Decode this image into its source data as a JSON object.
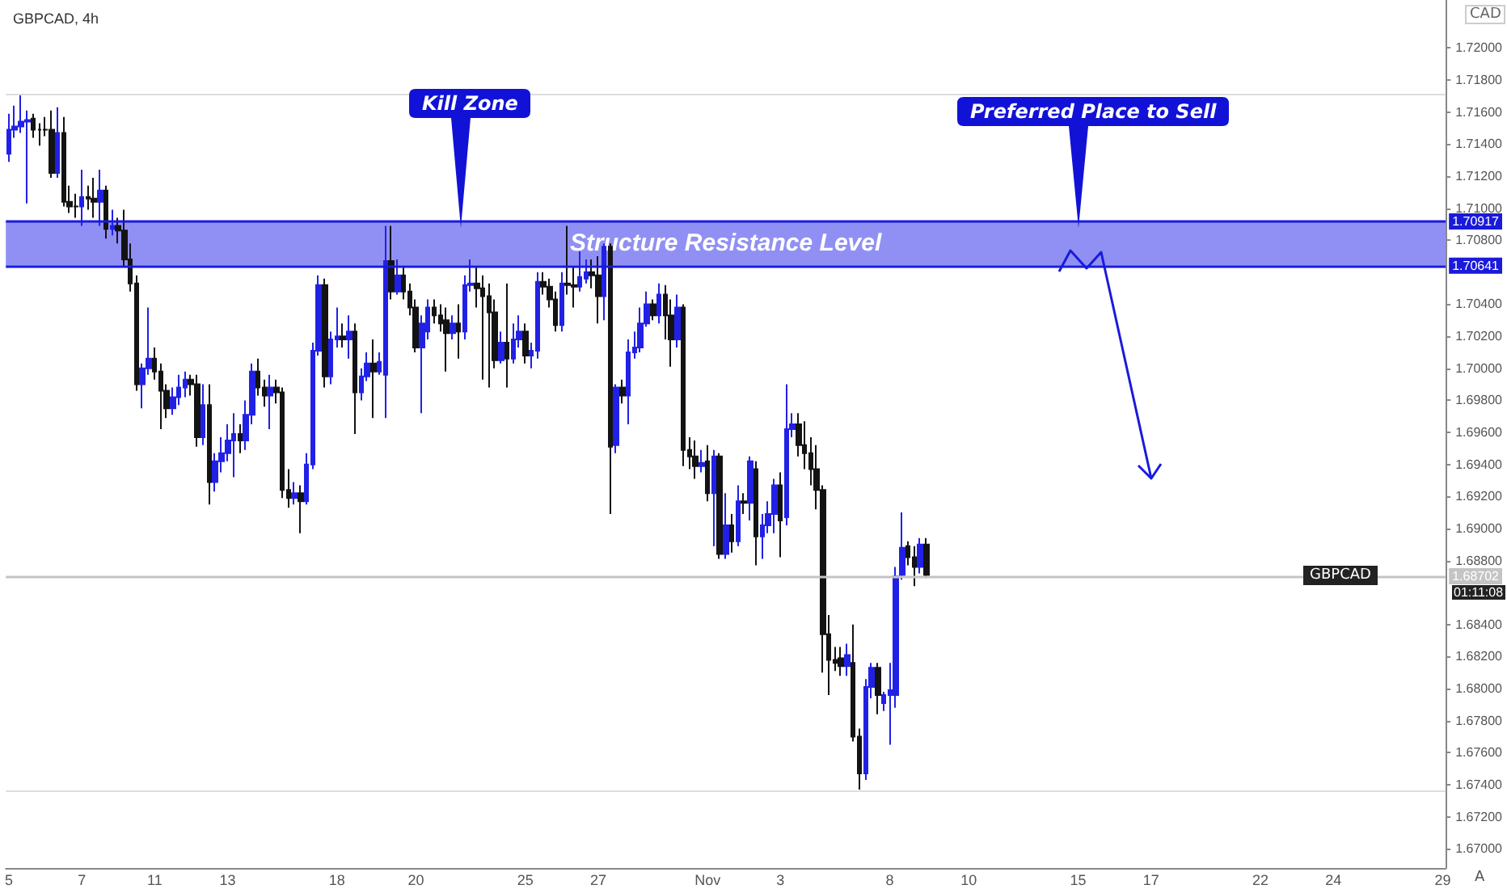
{
  "chart_data": {
    "type": "candlestick",
    "title": "GBPCAD, 4h",
    "categories": [
      "5",
      null,
      null,
      null,
      null,
      null,
      null,
      null,
      null,
      null,
      null,
      null,
      "7",
      null,
      null,
      null,
      null,
      null,
      null,
      null,
      null,
      null,
      null,
      null,
      "11",
      null,
      null,
      null,
      null,
      null,
      null,
      null,
      null,
      null,
      null,
      null,
      "13",
      null,
      null,
      null,
      null,
      null,
      null,
      null,
      null,
      null,
      null,
      null,
      null,
      null,
      null,
      null,
      null,
      null,
      "18",
      null,
      null,
      null,
      null,
      null,
      null,
      null,
      null,
      null,
      null,
      null,
      null,
      "20",
      null,
      null,
      null,
      null,
      null,
      null,
      null,
      null,
      null,
      null,
      null,
      null,
      null,
      null,
      null,
      null,
      null,
      "25",
      null,
      null,
      null,
      null,
      null,
      null,
      null,
      null,
      null,
      null,
      null,
      "27",
      null,
      null,
      null,
      null,
      null,
      null,
      null,
      null,
      null,
      null,
      null,
      null,
      null,
      null,
      null,
      null,
      null,
      "Nov",
      null,
      null,
      null,
      null,
      null,
      null,
      null,
      null,
      null,
      null,
      null,
      "3",
      null,
      null,
      null,
      null,
      null,
      null,
      null,
      null,
      null,
      null,
      null,
      null,
      null,
      null,
      null,
      null,
      null,
      "8",
      null,
      null,
      null,
      null,
      null,
      null,
      null,
      null,
      null,
      null,
      null,
      null,
      "10",
      null,
      null,
      null,
      null,
      null,
      null,
      null,
      null,
      null,
      null,
      null,
      null,
      null,
      null,
      null,
      null,
      null,
      "15",
      null,
      null,
      null,
      null,
      null,
      null,
      null,
      null,
      null,
      null,
      null,
      "17",
      null,
      null,
      null,
      null,
      null,
      null,
      null,
      null,
      null,
      null,
      null,
      null,
      null,
      null,
      null,
      null,
      null,
      "22",
      null,
      null,
      null,
      null,
      null,
      null,
      null,
      null,
      null,
      null,
      null,
      "24",
      null,
      null,
      null,
      null,
      null,
      null,
      null,
      null,
      null,
      null,
      null,
      null,
      null,
      null,
      null,
      null,
      null,
      "29"
    ],
    "ohlc": [
      [
        1.7134,
        1.7159,
        1.7129,
        1.7149
      ],
      [
        1.7149,
        1.7164,
        1.7144,
        1.7151
      ],
      [
        1.7151,
        1.7171,
        1.7147,
        1.7154
      ],
      [
        1.7154,
        1.7161,
        1.7103,
        1.7155
      ],
      [
        1.7156,
        1.7159,
        1.7144,
        1.7149
      ],
      [
        1.7149,
        1.7153,
        1.7139,
        1.7149
      ],
      [
        1.7149,
        1.7157,
        1.7145,
        1.7149
      ],
      [
        1.7149,
        1.7161,
        1.7119,
        1.7122
      ],
      [
        1.7122,
        1.7163,
        1.7119,
        1.7147
      ],
      [
        1.7147,
        1.7157,
        1.7101,
        1.7104
      ],
      [
        1.7104,
        1.7114,
        1.7097,
        1.7101
      ],
      [
        1.7101,
        1.7109,
        1.7094,
        1.7101
      ],
      [
        1.7101,
        1.7124,
        1.7089,
        1.7107
      ],
      [
        1.7107,
        1.7114,
        1.7099,
        1.7106
      ],
      [
        1.7106,
        1.7119,
        1.7094,
        1.7104
      ],
      [
        1.7104,
        1.7124,
        1.7089,
        1.7111
      ],
      [
        1.7111,
        1.7114,
        1.7081,
        1.7087
      ],
      [
        1.7087,
        1.7099,
        1.7083,
        1.7089
      ],
      [
        1.7089,
        1.7094,
        1.7078,
        1.7086
      ],
      [
        1.7086,
        1.7099,
        1.7063,
        1.7068
      ],
      [
        1.7068,
        1.7078,
        1.7048,
        1.7053
      ],
      [
        1.7053,
        1.7058,
        1.6986,
        1.699
      ],
      [
        1.699,
        1.7003,
        1.6975,
        1.7
      ],
      [
        1.7,
        1.7038,
        1.6996,
        1.7006
      ],
      [
        1.7006,
        1.7013,
        1.6993,
        1.6998
      ],
      [
        1.6998,
        1.7003,
        1.6962,
        1.6986
      ],
      [
        1.6986,
        1.699,
        1.6969,
        1.6975
      ],
      [
        1.6975,
        1.6988,
        1.6971,
        1.6982
      ],
      [
        1.6982,
        1.6996,
        1.6977,
        1.6988
      ],
      [
        1.6988,
        1.6998,
        1.6982,
        1.6993
      ],
      [
        1.6993,
        1.6996,
        1.6983,
        1.699
      ],
      [
        1.699,
        1.6996,
        1.6951,
        1.6957
      ],
      [
        1.6957,
        1.699,
        1.6952,
        1.6977
      ],
      [
        1.6977,
        1.699,
        1.6915,
        1.6929
      ],
      [
        1.6929,
        1.6947,
        1.6923,
        1.6942
      ],
      [
        1.6942,
        1.6957,
        1.6935,
        1.6947
      ],
      [
        1.6947,
        1.6965,
        1.6942,
        1.6955
      ],
      [
        1.6955,
        1.6972,
        1.6932,
        1.6959
      ],
      [
        1.6959,
        1.6965,
        1.6947,
        1.6955
      ],
      [
        1.6955,
        1.698,
        1.6949,
        1.6971
      ],
      [
        1.6971,
        1.7003,
        1.6965,
        1.6998
      ],
      [
        1.6998,
        1.7006,
        1.6983,
        1.6988
      ],
      [
        1.6988,
        1.6993,
        1.6976,
        1.6983
      ],
      [
        1.6983,
        1.6996,
        1.6962,
        1.6988
      ],
      [
        1.6988,
        1.6993,
        1.6978,
        1.6985
      ],
      [
        1.6985,
        1.6988,
        1.6919,
        1.6924
      ],
      [
        1.6924,
        1.6937,
        1.6913,
        1.6919
      ],
      [
        1.6919,
        1.6929,
        1.6915,
        1.6922
      ],
      [
        1.6922,
        1.6927,
        1.6897,
        1.6917
      ],
      [
        1.6917,
        1.6947,
        1.6915,
        1.694
      ],
      [
        1.694,
        1.7016,
        1.6937,
        1.7011
      ],
      [
        1.7011,
        1.7058,
        1.7008,
        1.7052
      ],
      [
        1.7052,
        1.7056,
        1.6988,
        1.6995
      ],
      [
        1.6995,
        1.7023,
        1.699,
        1.7018
      ],
      [
        1.7018,
        1.7038,
        1.7013,
        1.702
      ],
      [
        1.702,
        1.7028,
        1.7013,
        1.7018
      ],
      [
        1.7018,
        1.7033,
        1.7006,
        1.7023
      ],
      [
        1.7023,
        1.7028,
        1.6959,
        1.6985
      ],
      [
        1.6985,
        1.7,
        1.698,
        1.6995
      ],
      [
        1.6995,
        1.701,
        1.6992,
        1.7003
      ],
      [
        1.7003,
        1.7018,
        1.6969,
        1.6998
      ],
      [
        1.6998,
        1.701,
        1.6996,
        1.7004
      ],
      [
        1.6996,
        1.7089,
        1.6969,
        1.7067
      ],
      [
        1.7067,
        1.7089,
        1.7043,
        1.7048
      ],
      [
        1.7048,
        1.7068,
        1.7046,
        1.7058
      ],
      [
        1.7058,
        1.7063,
        1.7043,
        1.7048
      ],
      [
        1.7048,
        1.7053,
        1.7033,
        1.7038
      ],
      [
        1.7038,
        1.7043,
        1.701,
        1.7013
      ],
      [
        1.7013,
        1.7033,
        1.6972,
        1.7028
      ],
      [
        1.7023,
        1.7043,
        1.7018,
        1.7038
      ],
      [
        1.7038,
        1.7043,
        1.7028,
        1.7033
      ],
      [
        1.7033,
        1.704,
        1.7023,
        1.7028
      ],
      [
        1.703,
        1.7038,
        1.6998,
        1.7022
      ],
      [
        1.7022,
        1.7033,
        1.7018,
        1.7028
      ],
      [
        1.7028,
        1.704,
        1.7006,
        1.7023
      ],
      [
        1.7023,
        1.7058,
        1.7018,
        1.7052
      ],
      [
        1.7052,
        1.7068,
        1.7048,
        1.7053
      ],
      [
        1.7053,
        1.7063,
        1.7038,
        1.705
      ],
      [
        1.705,
        1.7058,
        1.6993,
        1.7045
      ],
      [
        1.7045,
        1.7053,
        1.6988,
        1.7035
      ],
      [
        1.7035,
        1.7043,
        1.7,
        1.7005
      ],
      [
        1.7005,
        1.7023,
        1.7003,
        1.7016
      ],
      [
        1.7016,
        1.7053,
        1.6988,
        1.7006
      ],
      [
        1.7006,
        1.7028,
        1.7003,
        1.7018
      ],
      [
        1.7018,
        1.7033,
        1.7013,
        1.7023
      ],
      [
        1.7023,
        1.7028,
        1.7003,
        1.7008
      ],
      [
        1.7008,
        1.7016,
        1.7,
        1.7011
      ],
      [
        1.7011,
        1.706,
        1.7006,
        1.7054
      ],
      [
        1.7054,
        1.706,
        1.7046,
        1.7051
      ],
      [
        1.7051,
        1.7056,
        1.7038,
        1.7043
      ],
      [
        1.7043,
        1.7048,
        1.7023,
        1.7027
      ],
      [
        1.7027,
        1.706,
        1.7023,
        1.7053
      ],
      [
        1.7053,
        1.7089,
        1.7046,
        1.7052
      ],
      [
        1.7052,
        1.7063,
        1.7038,
        1.7051
      ],
      [
        1.7051,
        1.7073,
        1.7048,
        1.7057
      ],
      [
        1.7056,
        1.7068,
        1.7053,
        1.706
      ],
      [
        1.706,
        1.7068,
        1.705,
        1.7058
      ],
      [
        1.7058,
        1.707,
        1.7028,
        1.7045
      ],
      [
        1.7045,
        1.7078,
        1.703,
        1.7076
      ],
      [
        1.7076,
        1.7078,
        1.6909,
        1.6951
      ],
      [
        1.6952,
        1.699,
        1.6947,
        1.6988
      ],
      [
        1.6988,
        1.6993,
        1.6978,
        1.6983
      ],
      [
        1.6983,
        1.7018,
        1.6965,
        1.701
      ],
      [
        1.701,
        1.7023,
        1.7006,
        1.7013
      ],
      [
        1.7013,
        1.7038,
        1.701,
        1.7028
      ],
      [
        1.7028,
        1.7048,
        1.7026,
        1.704
      ],
      [
        1.704,
        1.7043,
        1.703,
        1.7033
      ],
      [
        1.7033,
        1.7053,
        1.7028,
        1.7046
      ],
      [
        1.7046,
        1.7052,
        1.7018,
        1.7033
      ],
      [
        1.7033,
        1.7043,
        1.7001,
        1.7018
      ],
      [
        1.7018,
        1.7046,
        1.7013,
        1.7038
      ],
      [
        1.7038,
        1.704,
        1.6939,
        1.6949
      ],
      [
        1.6949,
        1.6957,
        1.6937,
        1.6945
      ],
      [
        1.6945,
        1.6955,
        1.6931,
        1.6939
      ],
      [
        1.6939,
        1.6949,
        1.6935,
        1.6941
      ],
      [
        1.6942,
        1.6952,
        1.6917,
        1.6922
      ],
      [
        1.6922,
        1.6949,
        1.6889,
        1.6945
      ],
      [
        1.6945,
        1.6947,
        1.6881,
        1.6884
      ],
      [
        1.6884,
        1.6922,
        1.6881,
        1.6902
      ],
      [
        1.6902,
        1.6909,
        1.6885,
        1.6892
      ],
      [
        1.6892,
        1.6927,
        1.6889,
        1.6917
      ],
      [
        1.6917,
        1.6922,
        1.6909,
        1.6916
      ],
      [
        1.6916,
        1.6945,
        1.6905,
        1.6942
      ],
      [
        1.6937,
        1.6942,
        1.6877,
        1.6895
      ],
      [
        1.6895,
        1.6909,
        1.6881,
        1.6902
      ],
      [
        1.6902,
        1.6917,
        1.6897,
        1.6909
      ],
      [
        1.6909,
        1.6931,
        1.6897,
        1.6927
      ],
      [
        1.6927,
        1.6935,
        1.6882,
        1.6905
      ],
      [
        1.6907,
        1.699,
        1.6902,
        1.6962
      ],
      [
        1.6962,
        1.6972,
        1.6957,
        1.6965
      ],
      [
        1.6965,
        1.6972,
        1.6945,
        1.6952
      ],
      [
        1.6952,
        1.6967,
        1.6937,
        1.6947
      ],
      [
        1.6947,
        1.6957,
        1.6927,
        1.6937
      ],
      [
        1.6937,
        1.6952,
        1.6912,
        1.6924
      ],
      [
        1.6924,
        1.6927,
        1.681,
        1.6834
      ],
      [
        1.6834,
        1.6846,
        1.6796,
        1.6818
      ],
      [
        1.6818,
        1.6826,
        1.6811,
        1.6816
      ],
      [
        1.6819,
        1.6826,
        1.6808,
        1.6814
      ],
      [
        1.6814,
        1.6828,
        1.6808,
        1.6821
      ],
      [
        1.6816,
        1.684,
        1.6767,
        1.677
      ],
      [
        1.677,
        1.6775,
        1.6737,
        1.6747
      ],
      [
        1.6747,
        1.6806,
        1.6743,
        1.6801
      ],
      [
        1.6801,
        1.6816,
        1.6794,
        1.6813
      ],
      [
        1.6813,
        1.6816,
        1.6784,
        1.6796
      ],
      [
        1.6791,
        1.6798,
        1.6786,
        1.6796
      ],
      [
        1.6796,
        1.6816,
        1.6765,
        1.6799
      ],
      [
        1.6796,
        1.6876,
        1.6788,
        1.687
      ],
      [
        1.6871,
        1.691,
        1.6868,
        1.6888
      ],
      [
        1.6889,
        1.6892,
        1.6877,
        1.6882
      ],
      [
        1.6882,
        1.6889,
        1.6864,
        1.6876
      ],
      [
        1.6876,
        1.6894,
        1.6872,
        1.689
      ],
      [
        1.689,
        1.6894,
        1.6869,
        1.6871
      ],
      null,
      null,
      null,
      null,
      null,
      null,
      null,
      null,
      null,
      null,
      null,
      null,
      null,
      null,
      null,
      null,
      null,
      null,
      null,
      null,
      null,
      null,
      null,
      null,
      null,
      null,
      null,
      null,
      null,
      null,
      null,
      null,
      null,
      null,
      null,
      null,
      null,
      null,
      null,
      null,
      null,
      null,
      null,
      null,
      null,
      null,
      null,
      null,
      null,
      null,
      null,
      null,
      null,
      null,
      null,
      null,
      null,
      null,
      null,
      null,
      null,
      null,
      null,
      null,
      null,
      null,
      null,
      null,
      null,
      null,
      null,
      null,
      null,
      null,
      null,
      null,
      null,
      null,
      null,
      null,
      null,
      null,
      null,
      null,
      null
    ],
    "colors": [
      "#2121e6",
      "#2121e6",
      "#2121e6",
      "#2121e6",
      "#131313",
      "#131313",
      "#131313",
      "#131313",
      "#2121e6",
      "#131313",
      "#131313",
      "#131313",
      "#2121e6",
      "#131313",
      "#131313",
      "#2121e6",
      "#131313",
      "#2121e6",
      "#131313",
      "#131313",
      "#131313",
      "#131313",
      "#2121e6",
      "#2121e6",
      "#131313",
      "#131313",
      "#131313",
      "#2121e6",
      "#2121e6",
      "#2121e6",
      "#131313",
      "#131313",
      "#2121e6",
      "#131313",
      "#2121e6",
      "#2121e6",
      "#2121e6",
      "#2121e6",
      "#131313",
      "#2121e6",
      "#2121e6",
      "#131313",
      "#131313",
      "#2121e6",
      "#131313",
      "#131313",
      "#131313",
      "#2121e6",
      "#131313",
      "#2121e6",
      "#2121e6",
      "#2121e6",
      "#131313",
      "#2121e6",
      "#2121e6",
      "#131313",
      "#2121e6",
      "#131313",
      "#2121e6",
      "#2121e6",
      "#131313",
      "#2121e6",
      "#2121e6",
      "#131313",
      "#2121e6",
      "#131313",
      "#131313",
      "#131313",
      "#2121e6",
      "#2121e6",
      "#131313",
      "#131313",
      "#131313",
      "#2121e6",
      "#131313",
      "#2121e6",
      "#2121e6",
      "#131313",
      "#131313",
      "#131313",
      "#131313",
      "#2121e6",
      "#131313",
      "#2121e6",
      "#2121e6",
      "#131313",
      "#2121e6",
      "#2121e6",
      "#131313",
      "#131313",
      "#131313",
      "#2121e6",
      "#131313",
      "#131313",
      "#2121e6",
      "#2121e6",
      "#131313",
      "#131313",
      "#2121e6",
      "#131313",
      "#2121e6",
      "#131313",
      "#2121e6",
      "#2121e6",
      "#2121e6",
      "#2121e6",
      "#131313",
      "#2121e6",
      "#131313",
      "#131313",
      "#2121e6",
      "#131313",
      "#131313",
      "#131313",
      "#2121e6",
      "#131313",
      "#2121e6",
      "#131313",
      "#2121e6",
      "#131313",
      "#2121e6",
      "#131313",
      "#2121e6",
      "#131313",
      "#2121e6",
      "#2121e6",
      "#2121e6",
      "#131313",
      "#2121e6",
      "#2121e6",
      "#131313",
      "#131313",
      "#131313",
      "#131313",
      "#131313",
      "#131313",
      "#131313",
      "#131313",
      "#2121e6",
      "#131313",
      "#131313",
      "#2121e6",
      "#2121e6",
      "#131313",
      "#2121e6",
      "#2121e6",
      "#2121e6",
      "#2121e6",
      "#131313",
      "#131313",
      "#2121e6",
      "#131313",
      null,
      null,
      null,
      null,
      null,
      null,
      null,
      null,
      null,
      null,
      null,
      null,
      null,
      null,
      null,
      null,
      null,
      null,
      null,
      null,
      null,
      null,
      null,
      null,
      null,
      null,
      null,
      null,
      null,
      null,
      null,
      null,
      null,
      null,
      null,
      null,
      null,
      null,
      null,
      null,
      null,
      null,
      null,
      null,
      null,
      null,
      null,
      null,
      null,
      null,
      null,
      null,
      null,
      null,
      null,
      null,
      null,
      null,
      null,
      null,
      null,
      null,
      null,
      null,
      null,
      null,
      null,
      null,
      null,
      null,
      null,
      null,
      null,
      null,
      null,
      null,
      null,
      null,
      null,
      null,
      null,
      null,
      null,
      null,
      null
    ],
    "ylim": [
      1.6688,
      1.723
    ],
    "yticks": [
      {
        "value": 1.67,
        "label": "1.67000"
      },
      {
        "value": 1.672,
        "label": "1.67200"
      },
      {
        "value": 1.674,
        "label": "1.67400"
      },
      {
        "value": 1.676,
        "label": "1.67600"
      },
      {
        "value": 1.678,
        "label": "1.67800"
      },
      {
        "value": 1.68,
        "label": "1.68000"
      },
      {
        "value": 1.682,
        "label": "1.68200"
      },
      {
        "value": 1.684,
        "label": "1.68400"
      },
      {
        "value": 1.688,
        "label": "1.68800"
      },
      {
        "value": 1.69,
        "label": "1.69000"
      },
      {
        "value": 1.692,
        "label": "1.69200"
      },
      {
        "value": 1.694,
        "label": "1.69400"
      },
      {
        "value": 1.696,
        "label": "1.69600"
      },
      {
        "value": 1.698,
        "label": "1.69800"
      },
      {
        "value": 1.7,
        "label": "1.70000"
      },
      {
        "value": 1.702,
        "label": "1.70200"
      },
      {
        "value": 1.704,
        "label": "1.70400"
      },
      {
        "value": 1.708,
        "label": "1.70800"
      },
      {
        "value": 1.71,
        "label": "1.71000"
      },
      {
        "value": 1.712,
        "label": "1.71200"
      },
      {
        "value": 1.714,
        "label": "1.71400"
      },
      {
        "value": 1.716,
        "label": "1.71600"
      },
      {
        "value": 1.718,
        "label": "1.71800"
      },
      {
        "value": 1.72,
        "label": "1.72000"
      }
    ],
    "ref_lines": [
      {
        "axis": "y",
        "value": 1.7171,
        "color": "#dcdcdc"
      },
      {
        "axis": "y",
        "value": 1.6736,
        "color": "#dcdcdc"
      },
      {
        "axis": "y",
        "value": 1.68702,
        "label": "1.68702",
        "color": "#c4c4c4"
      },
      {
        "axis": "y",
        "value": 1.70917,
        "label": "1.70917",
        "color": "#1a1adb"
      },
      {
        "axis": "y",
        "value": 1.70641,
        "label": "1.70641",
        "color": "#1a1adb"
      }
    ],
    "bands": [
      {
        "axis": "y",
        "from": 1.70641,
        "to": 1.70917,
        "label": "Structure Resistance Level",
        "color": "#9090f4"
      }
    ],
    "annotations": [
      "Kill Zone",
      "Preferred Place to Sell",
      "GBPCAD",
      "01:11:08",
      "CAD",
      "A"
    ],
    "grid": false
  }
}
